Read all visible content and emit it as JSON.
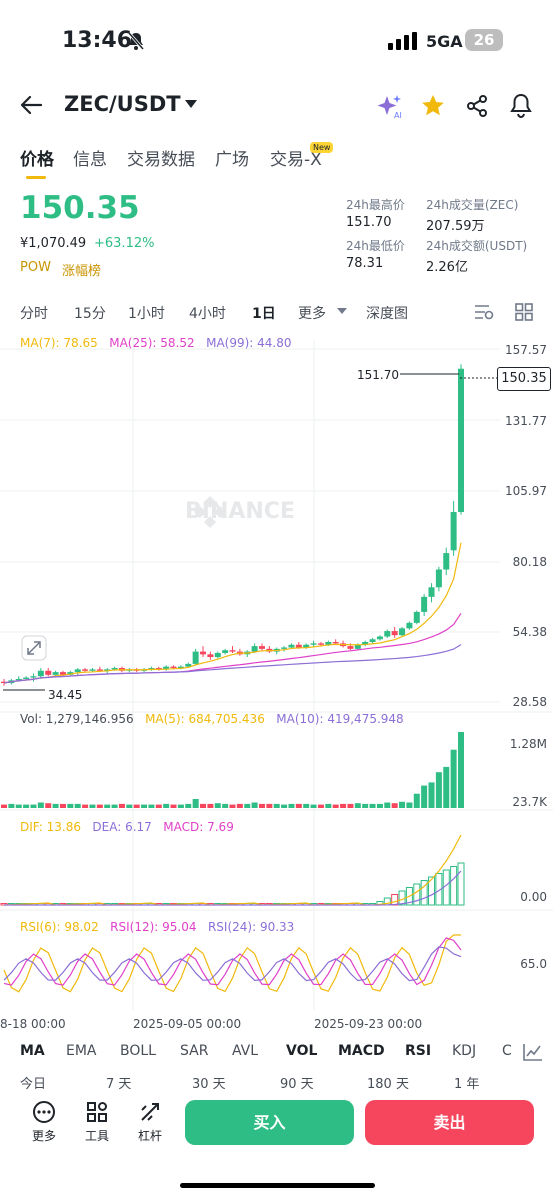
{
  "status": {
    "time": "13:46",
    "network": "5GA",
    "battery": "26"
  },
  "header": {
    "pair": "ZEC/USDT",
    "icons": [
      "back-arrow-icon",
      "dropdown-icon",
      "ai-sparkle-icon",
      "star-icon",
      "share-icon",
      "bell-icon"
    ]
  },
  "tabs": [
    "价格",
    "信息",
    "交易数据",
    "广场",
    "交易-X"
  ],
  "tab_new_badge": "New",
  "price": {
    "last": "150.35",
    "cny": "¥1,070.49",
    "change": "+63.12%",
    "tag_pow": "POW",
    "tag_rank": "涨幅榜"
  },
  "stats": {
    "high_label": "24h最高价",
    "high": "151.70",
    "low_label": "24h最低价",
    "low": "78.31",
    "vol_label": "24h成交量(ZEC)",
    "vol": "207.59万",
    "amt_label": "24h成交额(USDT)",
    "amt": "2.26亿"
  },
  "intervals": [
    "分时",
    "15分",
    "1小时",
    "4小时",
    "1日",
    "更多",
    "深度图"
  ],
  "active_interval": "1日",
  "ma": {
    "ma7": "MA(7): 78.65",
    "ma25": "MA(25): 58.52",
    "ma99": "MA(99): 44.80"
  },
  "price_axis": [
    "157.57",
    "131.77",
    "105.97",
    "80.18",
    "54.38",
    "28.58"
  ],
  "high_marker": "151.70",
  "low_marker": "34.45",
  "current_marker": "150.35",
  "watermark": "BINANCE",
  "volume": {
    "vol": "Vol: 1,279,146.956",
    "ma5": "MA(5): 684,705.436",
    "ma10": "MA(10): 419,475.948",
    "axis_top": "1.28M",
    "axis_bottom": "23.7K"
  },
  "macd": {
    "dif": "DIF: 13.86",
    "dea": "DEA: 6.17",
    "macd": "MACD: 7.69",
    "axis": "0.00"
  },
  "rsi": {
    "rsi6": "RSI(6): 98.02",
    "rsi12": "RSI(12): 95.04",
    "rsi24": "RSI(24): 90.33",
    "axis": "65.0"
  },
  "dates": [
    "8-18 00:00",
    "2025-09-05 00:00",
    "2025-09-23 00:00"
  ],
  "indicators": [
    "MA",
    "EMA",
    "BOLL",
    "SAR",
    "AVL",
    "VOL",
    "MACD",
    "RSI",
    "KDJ",
    "C"
  ],
  "ranges": [
    "今日",
    "7 天",
    "30 天",
    "90 天",
    "180 天",
    "1 年"
  ],
  "tools": [
    "更多",
    "工具",
    "杠杆"
  ],
  "actions": {
    "buy": "买入",
    "sell": "卖出"
  },
  "colors": {
    "up": "#2ebd85",
    "down": "#f6465d",
    "ma7": "#f0b90b",
    "ma25": "#e040c8",
    "ma99": "#8b6fd6",
    "accent": "#f0b90b"
  },
  "chart_data": {
    "type": "candlestick",
    "ylim": [
      28.58,
      157.57
    ],
    "candles": [
      [
        36,
        37,
        34.45,
        35.5
      ],
      [
        35.5,
        37,
        35,
        36.5
      ],
      [
        36.5,
        38,
        36,
        37
      ],
      [
        37,
        38,
        36.5,
        37.5
      ],
      [
        37.5,
        39,
        36,
        38
      ],
      [
        38,
        41,
        37,
        40
      ],
      [
        40,
        41,
        38,
        38.5
      ],
      [
        38.5,
        40,
        37.5,
        39.5
      ],
      [
        39.5,
        40,
        38,
        38.5
      ],
      [
        38.5,
        40,
        38,
        39.5
      ],
      [
        39.5,
        41,
        38.5,
        40.5
      ],
      [
        40.5,
        41,
        39.5,
        40
      ],
      [
        40,
        41,
        39.5,
        40.5
      ],
      [
        40.5,
        41.5,
        39.5,
        40
      ],
      [
        40,
        41,
        39,
        40.5
      ],
      [
        40.5,
        41.5,
        40,
        41
      ],
      [
        41,
        41.5,
        39.5,
        40
      ],
      [
        40,
        41,
        39.5,
        40.5
      ],
      [
        40.5,
        41,
        39.5,
        40
      ],
      [
        40,
        41,
        39,
        40.5
      ],
      [
        40.5,
        41.5,
        40,
        41
      ],
      [
        41,
        41.5,
        40,
        40.5
      ],
      [
        40.5,
        42,
        40,
        41.5
      ],
      [
        41.5,
        42,
        40.5,
        41
      ],
      [
        41,
        42,
        40.5,
        41.5
      ],
      [
        41.5,
        43,
        41,
        42.5
      ],
      [
        42.5,
        48,
        42,
        47
      ],
      [
        47,
        49,
        45,
        46
      ],
      [
        46,
        47,
        44,
        45
      ],
      [
        45,
        47,
        44.5,
        46.5
      ],
      [
        46.5,
        48,
        46,
        47.5
      ],
      [
        47.5,
        49,
        46.5,
        47
      ],
      [
        47,
        48,
        45.5,
        46
      ],
      [
        46,
        47.5,
        45,
        47
      ],
      [
        47,
        50,
        46.5,
        49
      ],
      [
        49,
        50,
        47,
        48
      ],
      [
        48,
        49,
        46.5,
        47
      ],
      [
        47,
        48.5,
        46,
        48
      ],
      [
        48,
        49,
        47,
        48.5
      ],
      [
        48.5,
        50,
        48,
        49.5
      ],
      [
        49.5,
        50.5,
        48,
        48.5
      ],
      [
        48.5,
        50,
        48,
        49.5
      ],
      [
        49.5,
        51,
        48.5,
        50
      ],
      [
        50,
        50.5,
        49,
        49.5
      ],
      [
        49.5,
        51,
        49,
        50.5
      ],
      [
        50.5,
        51.5,
        49.5,
        50
      ],
      [
        50,
        51,
        48.5,
        49
      ],
      [
        49,
        50,
        47.5,
        48
      ],
      [
        48,
        50,
        47.5,
        49.5
      ],
      [
        49.5,
        51,
        49,
        50.5
      ],
      [
        50.5,
        52,
        50,
        51.5
      ],
      [
        51.5,
        53,
        51,
        52.5
      ],
      [
        52.5,
        55,
        52,
        54.5
      ],
      [
        54.5,
        56,
        52,
        53
      ],
      [
        53,
        56,
        52.5,
        55.5
      ],
      [
        55.5,
        58,
        55,
        57.5
      ],
      [
        57.5,
        62,
        57,
        61.5
      ],
      [
        61.5,
        68,
        60,
        67
      ],
      [
        67,
        72,
        65,
        70.5
      ],
      [
        70.5,
        78,
        69,
        77
      ],
      [
        77,
        85,
        75,
        83
      ],
      [
        84,
        102,
        82,
        98
      ],
      [
        98,
        152,
        97,
        150.35
      ]
    ],
    "volume_axis": [
      "1.28M",
      "23.7K"
    ]
  }
}
